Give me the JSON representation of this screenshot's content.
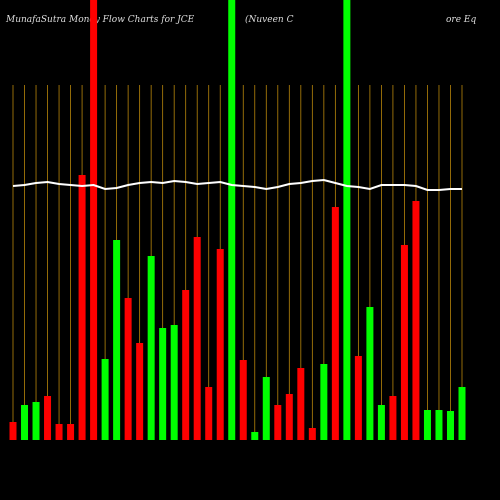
{
  "chart_data": {
    "type": "bar",
    "title": "MunafaSutra  Money Flow  Charts for JCE",
    "subtitle": "(Nuveen  C",
    "subtitle2": "ore  Eq",
    "categories": [
      null,
      null,
      null,
      null,
      null,
      null,
      null,
      null,
      null,
      null,
      null,
      null,
      null,
      null,
      null,
      null,
      null,
      null,
      null,
      null,
      null,
      null,
      null,
      null,
      null,
      null,
      null,
      null,
      null,
      null,
      null,
      null,
      null,
      null,
      null,
      null,
      null,
      null,
      null,
      null
    ],
    "ylim": [
      0,
      440
    ],
    "series": [
      {
        "type": "bar",
        "values": [
          18,
          35,
          38,
          44,
          16,
          16,
          265,
          440,
          81,
          200,
          142,
          97,
          184,
          112,
          115,
          150,
          203,
          53,
          191,
          440,
          80,
          8,
          63,
          35,
          46,
          72,
          12,
          76,
          233,
          440,
          84,
          133,
          35,
          44,
          195,
          239,
          30,
          30,
          29,
          53
        ],
        "colors": [
          "#ff0000",
          "#00ff00",
          "#00ff00",
          "#ff0000",
          "#ff0000",
          "#ff0000",
          "#ff0000",
          "#ff0000",
          "#00ff00",
          "#00ff00",
          "#ff0000",
          "#ff0000",
          "#00ff00",
          "#00ff00",
          "#00ff00",
          "#ff0000",
          "#ff0000",
          "#ff0000",
          "#ff0000",
          "#00ff00",
          "#ff0000",
          "#00ff00",
          "#00ff00",
          "#ff0000",
          "#ff0000",
          "#ff0000",
          "#ff0000",
          "#00ff00",
          "#ff0000",
          "#00ff00",
          "#ff0000",
          "#00ff00",
          "#00ff00",
          "#ff0000",
          "#ff0000",
          "#ff0000",
          "#00ff00",
          "#00ff00",
          "#00ff00",
          "#00ff00"
        ]
      },
      {
        "type": "line",
        "color": "#ffffff",
        "values": [
          254,
          255,
          257,
          258,
          256,
          255,
          254,
          255,
          251,
          252,
          255,
          257,
          258,
          257,
          259,
          258,
          256,
          257,
          258,
          255,
          254,
          253,
          251,
          253,
          256,
          257,
          259,
          260,
          257,
          254,
          253,
          251,
          255,
          255,
          255,
          254,
          250,
          250,
          251,
          251
        ]
      }
    ],
    "vline_color": "#b8860b"
  }
}
